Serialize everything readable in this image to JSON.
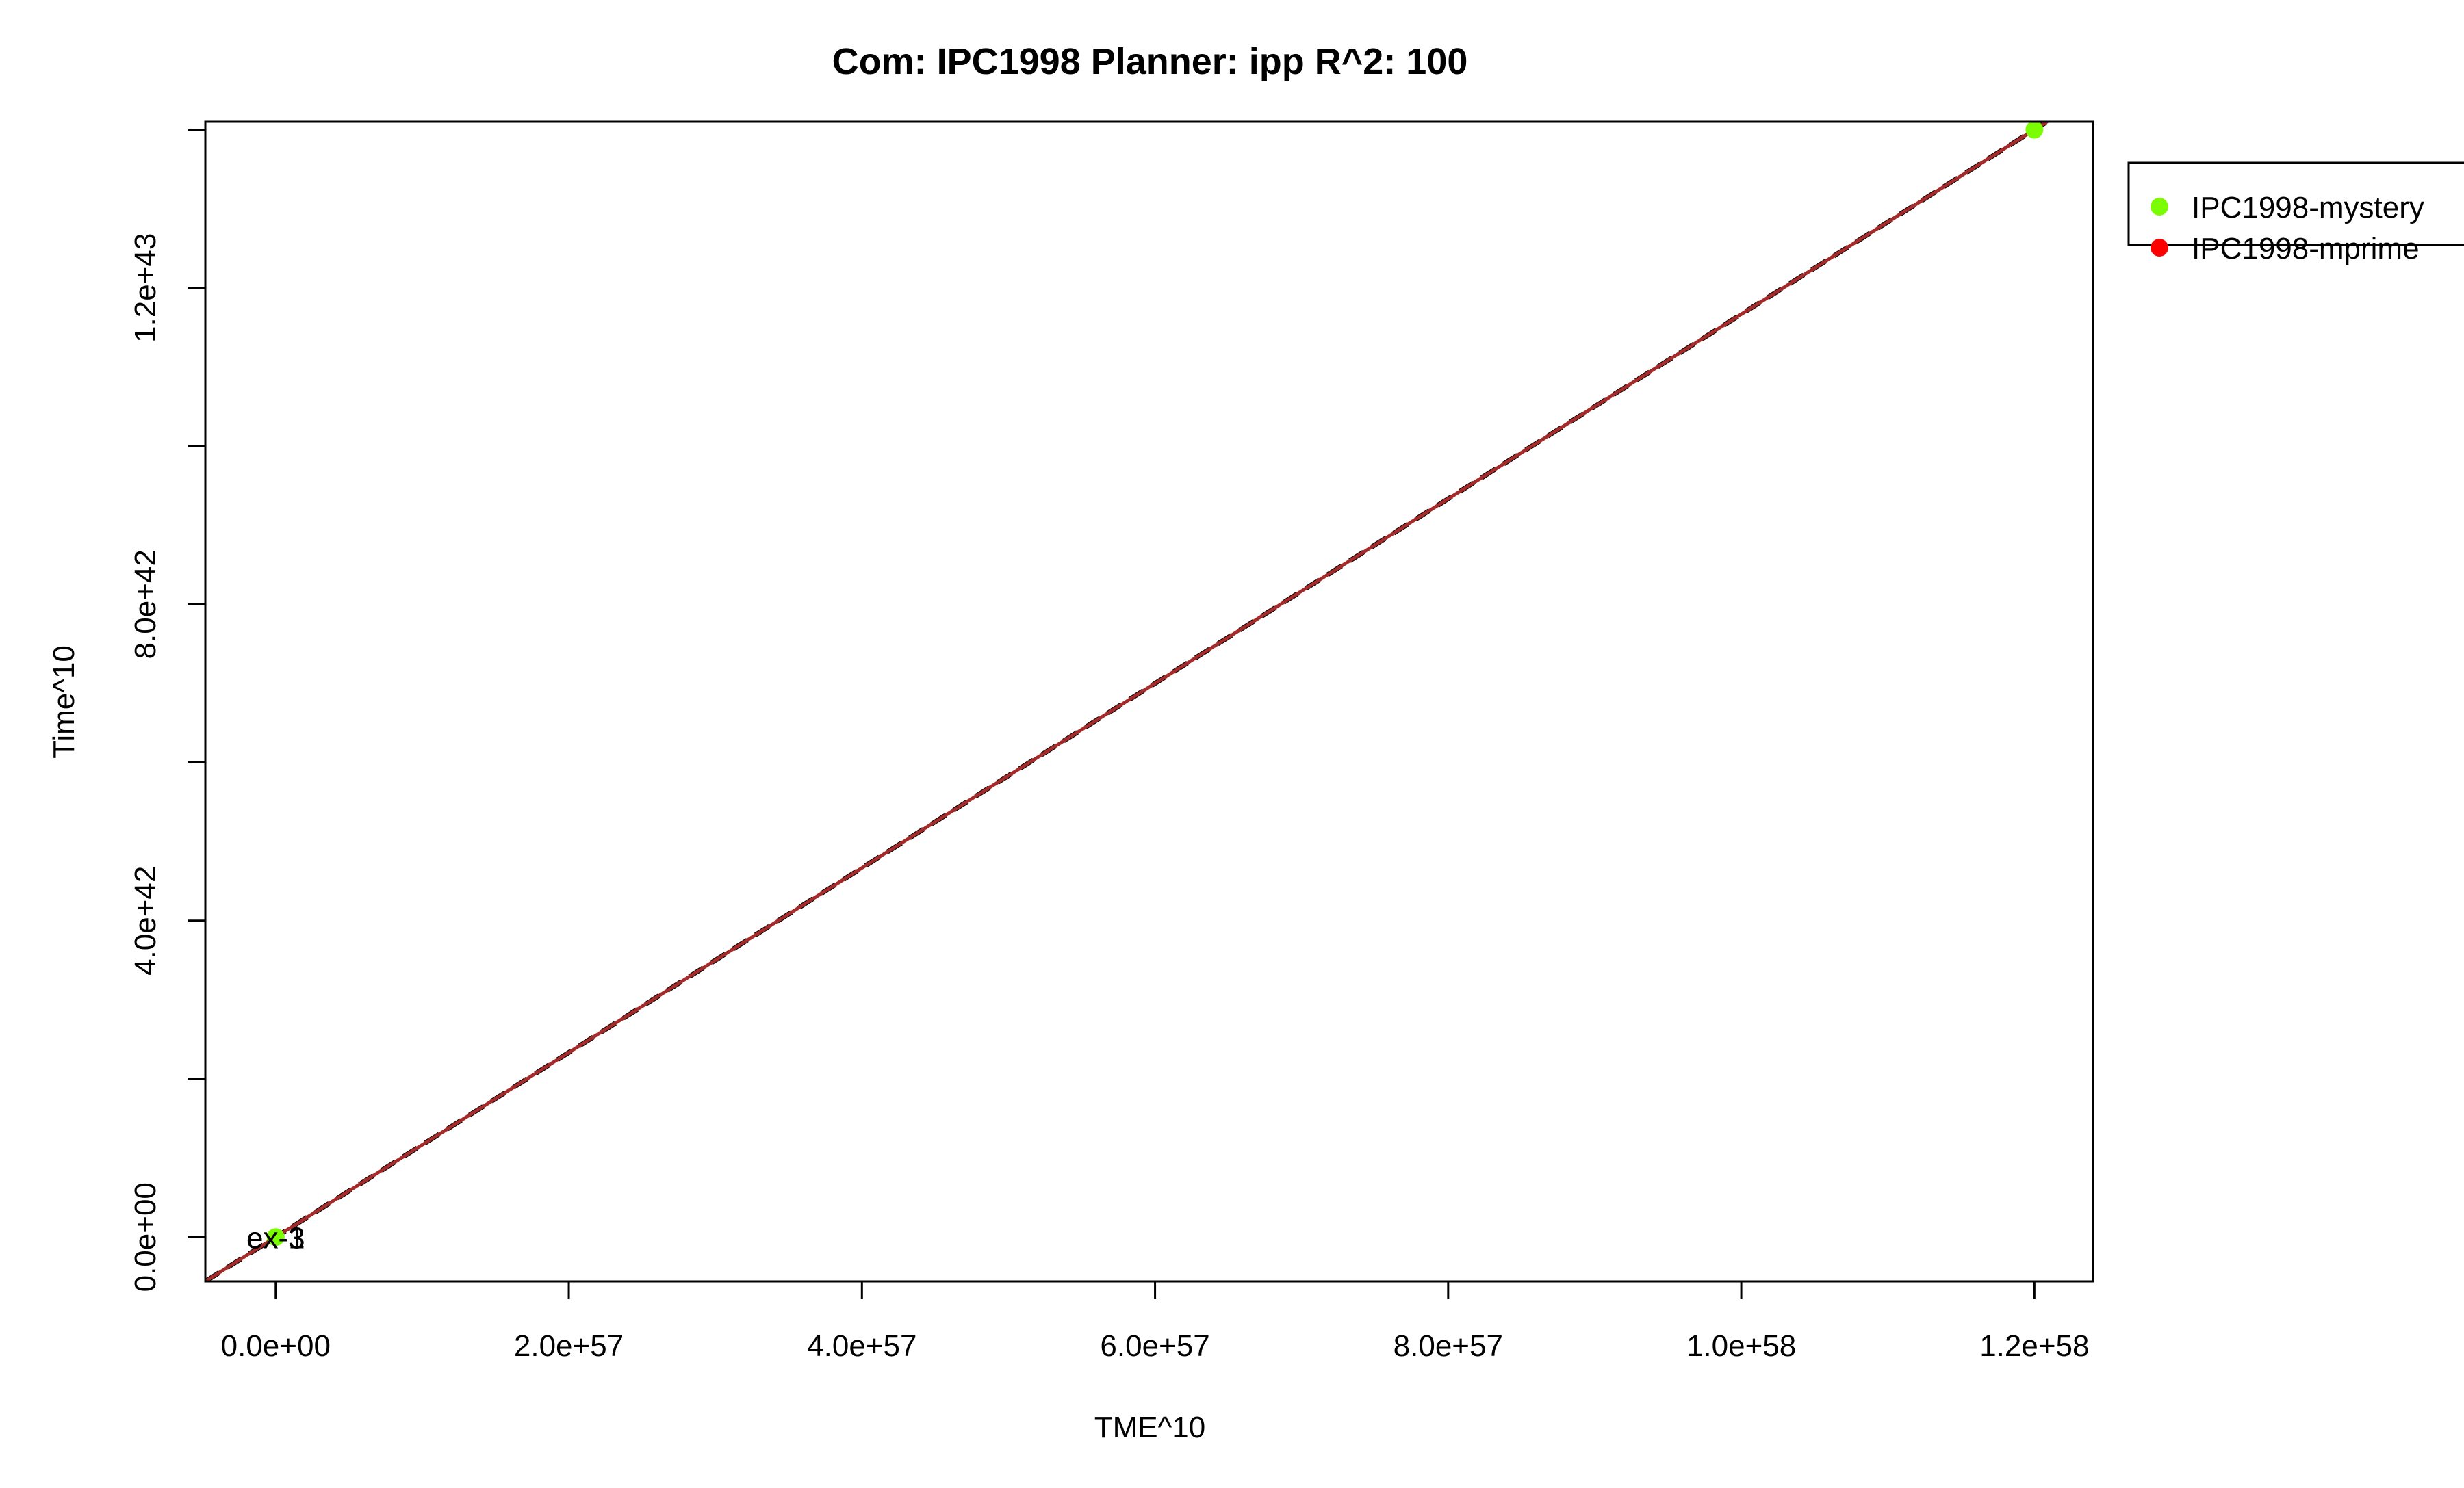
{
  "chart_data": {
    "type": "scatter",
    "title": "Com: IPC1998 Planner: ipp R^2: 100",
    "xlabel": "TME^10",
    "ylabel": "Time^10",
    "xlim": [
      -4.8e+56,
      1.24e+58
    ],
    "ylim": [
      -5.6e+41,
      1.41e+43
    ],
    "x_ticks": [
      {
        "value": 0,
        "label": "0.0e+00"
      },
      {
        "value": 2e+57,
        "label": "2.0e+57"
      },
      {
        "value": 4e+57,
        "label": "4.0e+57"
      },
      {
        "value": 6e+57,
        "label": "6.0e+57"
      },
      {
        "value": 8e+57,
        "label": "8.0e+57"
      },
      {
        "value": 1e+58,
        "label": "1.0e+58"
      },
      {
        "value": 1.2e+58,
        "label": "1.2e+58"
      }
    ],
    "y_ticks": [
      {
        "value": 0,
        "label": "0.0e+00"
      },
      {
        "value": 2e+42,
        "label": ""
      },
      {
        "value": 4e+42,
        "label": "4.0e+42"
      },
      {
        "value": 6e+42,
        "label": ""
      },
      {
        "value": 8e+42,
        "label": "8.0e+42"
      },
      {
        "value": 1e+43,
        "label": ""
      },
      {
        "value": 1.2e+43,
        "label": "1.2e+43"
      },
      {
        "value": 1.4e+43,
        "label": ""
      }
    ],
    "series": [
      {
        "name": "IPC1998-mystery",
        "color": "#7CFC00",
        "points": [
          {
            "x": 0,
            "y": 0
          },
          {
            "x": 1.2e+58,
            "y": 1.4e+43
          }
        ]
      },
      {
        "name": "IPC1998-mprime",
        "color": "#FF0000",
        "points": []
      }
    ],
    "point_labels": [
      {
        "text": "ex-3",
        "x": 0,
        "y": 0
      },
      {
        "text": "ex-1",
        "x": 0,
        "y": 0
      }
    ],
    "fit_lines": [
      {
        "color": "#000000",
        "dashed": true,
        "slope": 1.1667e-15,
        "intercept": 0
      },
      {
        "color": "#A52A2A",
        "dashed": false,
        "slope": 1.1667e-15,
        "intercept": 0
      }
    ],
    "legend": {
      "position": "right-outside-top"
    },
    "grid": false
  }
}
